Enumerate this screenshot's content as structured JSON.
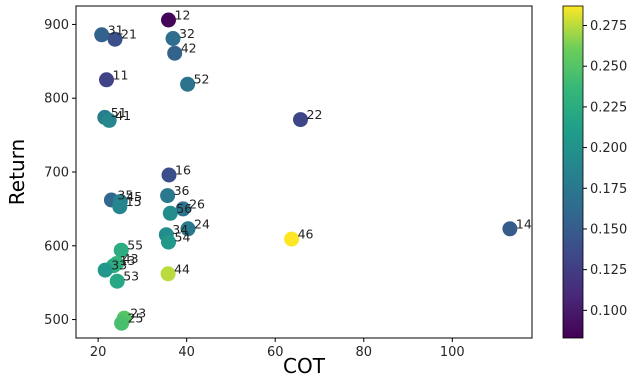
{
  "chart_data": {
    "type": "scatter",
    "title": "",
    "xlabel": "COT",
    "ylabel": "Return",
    "xlim": [
      15,
      118
    ],
    "ylim": [
      475,
      925
    ],
    "xticks": [
      20,
      40,
      60,
      80,
      100
    ],
    "yticks": [
      500,
      600,
      700,
      800,
      900
    ],
    "colorbar": {
      "colormap": "viridis",
      "range": [
        0.083,
        0.287
      ],
      "ticks": [
        0.1,
        0.125,
        0.15,
        0.175,
        0.2,
        0.225,
        0.25,
        0.275
      ],
      "tick_labels": [
        "0.100",
        "0.125",
        "0.150",
        "0.175",
        "0.200",
        "0.225",
        "0.250",
        "0.275"
      ]
    },
    "grid": false,
    "points": [
      {
        "label": "12",
        "x": 35.9,
        "y": 906,
        "c": 0.086
      },
      {
        "label": "31",
        "x": 20.8,
        "y": 886,
        "c": 0.155
      },
      {
        "label": "21",
        "x": 23.8,
        "y": 880,
        "c": 0.14
      },
      {
        "label": "32",
        "x": 36.9,
        "y": 881,
        "c": 0.165
      },
      {
        "label": "42",
        "x": 37.3,
        "y": 861,
        "c": 0.155
      },
      {
        "label": "52",
        "x": 40.2,
        "y": 819,
        "c": 0.17
      },
      {
        "label": "11",
        "x": 21.9,
        "y": 825,
        "c": 0.13
      },
      {
        "label": "22",
        "x": 65.7,
        "y": 771,
        "c": 0.132
      },
      {
        "label": "51",
        "x": 21.5,
        "y": 774,
        "c": 0.18
      },
      {
        "label": "41",
        "x": 22.5,
        "y": 770,
        "c": 0.19
      },
      {
        "label": "16",
        "x": 36.0,
        "y": 696,
        "c": 0.14
      },
      {
        "label": "36",
        "x": 35.7,
        "y": 668,
        "c": 0.175
      },
      {
        "label": "35",
        "x": 23.0,
        "y": 662,
        "c": 0.16
      },
      {
        "label": "45",
        "x": 25.0,
        "y": 660,
        "c": 0.185
      },
      {
        "label": "15",
        "x": 24.9,
        "y": 653,
        "c": 0.19
      },
      {
        "label": "26",
        "x": 39.2,
        "y": 650,
        "c": 0.17
      },
      {
        "label": "56",
        "x": 36.3,
        "y": 644,
        "c": 0.195
      },
      {
        "label": "24",
        "x": 40.3,
        "y": 623,
        "c": 0.175
      },
      {
        "label": "34",
        "x": 35.4,
        "y": 615,
        "c": 0.195
      },
      {
        "label": "54",
        "x": 35.9,
        "y": 605,
        "c": 0.205
      },
      {
        "label": "46",
        "x": 63.7,
        "y": 609,
        "c": 0.287
      },
      {
        "label": "14",
        "x": 113.0,
        "y": 623,
        "c": 0.15
      },
      {
        "label": "55",
        "x": 25.2,
        "y": 594,
        "c": 0.225
      },
      {
        "label": "43",
        "x": 24.2,
        "y": 576,
        "c": 0.235
      },
      {
        "label": "13",
        "x": 23.5,
        "y": 573,
        "c": 0.225
      },
      {
        "label": "33",
        "x": 21.6,
        "y": 567,
        "c": 0.205
      },
      {
        "label": "44",
        "x": 35.8,
        "y": 562,
        "c": 0.275
      },
      {
        "label": "53",
        "x": 24.3,
        "y": 552,
        "c": 0.22
      },
      {
        "label": "23",
        "x": 25.9,
        "y": 502,
        "c": 0.25
      },
      {
        "label": "25",
        "x": 25.3,
        "y": 495,
        "c": 0.245
      }
    ]
  }
}
